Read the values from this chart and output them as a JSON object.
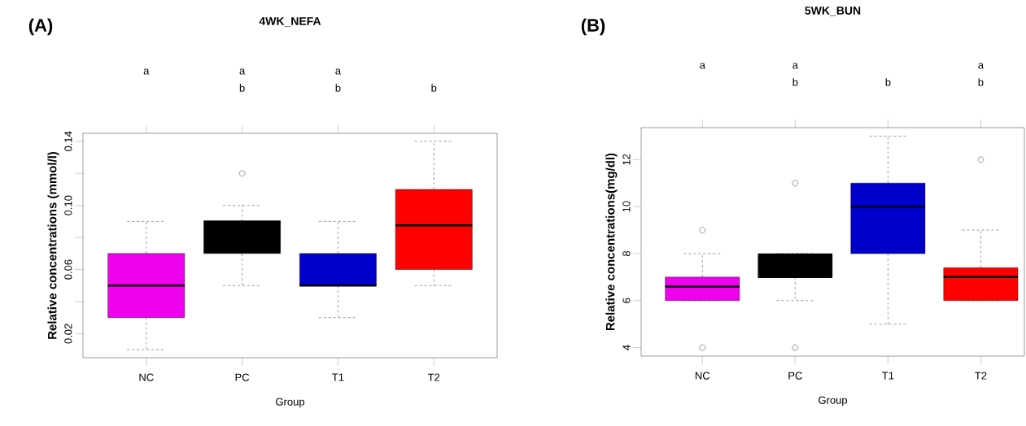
{
  "chart_data": [
    {
      "type": "box",
      "title": "4WK_NEFA",
      "xlabel": "Group",
      "ylabel": "Relative concentrations (mmol/l)",
      "categories": [
        "NC",
        "PC",
        "T1",
        "T2"
      ],
      "colors": [
        "#ee00ee",
        "#000000",
        "#0000cc",
        "#ff0000"
      ],
      "boxes": [
        {
          "low": 0.01,
          "q1": 0.03,
          "median": 0.05,
          "q3": 0.07,
          "high": 0.09
        },
        {
          "low": 0.05,
          "q1": 0.07,
          "median": 0.09,
          "q3": 0.09,
          "high": 0.1,
          "outliers": [
            0.12
          ]
        },
        {
          "low": 0.03,
          "q1": 0.05,
          "median": 0.05,
          "q3": 0.07,
          "high": 0.09
        },
        {
          "low": 0.05,
          "q1": 0.06,
          "median": 0.0875,
          "q3": 0.11,
          "high": 0.14
        }
      ],
      "ylim": [
        0.005,
        0.145
      ],
      "yticks": [
        0.02,
        {
          "value": 0.04,
          "label": null
        },
        0.06,
        {
          "value": 0.08,
          "label": null
        },
        {
          "value": 0.1,
          "label": "0.10"
        },
        {
          "value": 0.12,
          "label": null
        },
        0.14
      ],
      "marker": "circle",
      "annotations": [
        "(A)",
        "a",
        "a",
        "b",
        "a",
        "b",
        "b"
      ]
    },
    {
      "type": "box",
      "title": "5WK_BUN",
      "xlabel": "Group",
      "ylabel": "Relative concentrations(mg/dl)",
      "categories": [
        "NC",
        "PC",
        "T1",
        "T2"
      ],
      "colors": [
        "#ee00ee",
        "#000000",
        "#0000cc",
        "#ff0000"
      ],
      "boxes": [
        {
          "low": 6,
          "q1": 6,
          "median": 6.6,
          "q3": 7,
          "high": 8,
          "outliers": [
            4,
            9
          ]
        },
        {
          "low": 6,
          "q1": 7,
          "median": 7,
          "q3": 8,
          "high": 8,
          "outliers": [
            4,
            11
          ]
        },
        {
          "low": 5,
          "q1": 8,
          "median": 10,
          "q3": 11,
          "high": 13
        },
        {
          "low": 6,
          "q1": 6,
          "median": 7,
          "q3": 7.4,
          "high": 9,
          "outliers": [
            12
          ]
        }
      ],
      "ylim": [
        3.64,
        13.36
      ],
      "yticks": [
        4,
        6,
        8,
        10,
        12
      ],
      "marker": "circle",
      "annotations": [
        "(B)",
        "a",
        "a",
        "b",
        "b",
        "a",
        "b"
      ]
    }
  ]
}
